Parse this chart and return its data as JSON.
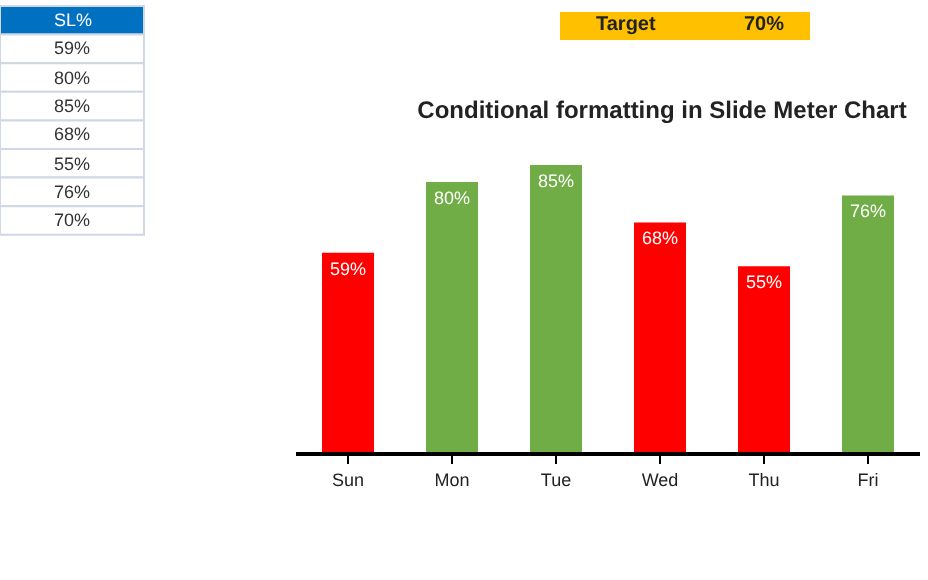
{
  "chart_data": {
    "type": "bar",
    "title": "Conditional formatting in Slide Meter Chart",
    "categories": [
      "Sun",
      "Mon",
      "Tue",
      "Wed",
      "Thu",
      "Fri"
    ],
    "values": [
      59,
      80,
      85,
      68,
      55,
      76
    ],
    "colors": [
      "#ff0000",
      "#70ad47",
      "#70ad47",
      "#ff0000",
      "#ff0000",
      "#70ad47"
    ],
    "value_labels": [
      "59%",
      "80%",
      "85%",
      "68%",
      "55%",
      "76%"
    ],
    "tick_labels": "x",
    "legend": false,
    "annotations": [
      "SL%",
      "59%",
      "80%",
      "85%",
      "68%",
      "55%",
      "76%",
      "70%",
      "Target",
      "70%"
    ]
  }
}
